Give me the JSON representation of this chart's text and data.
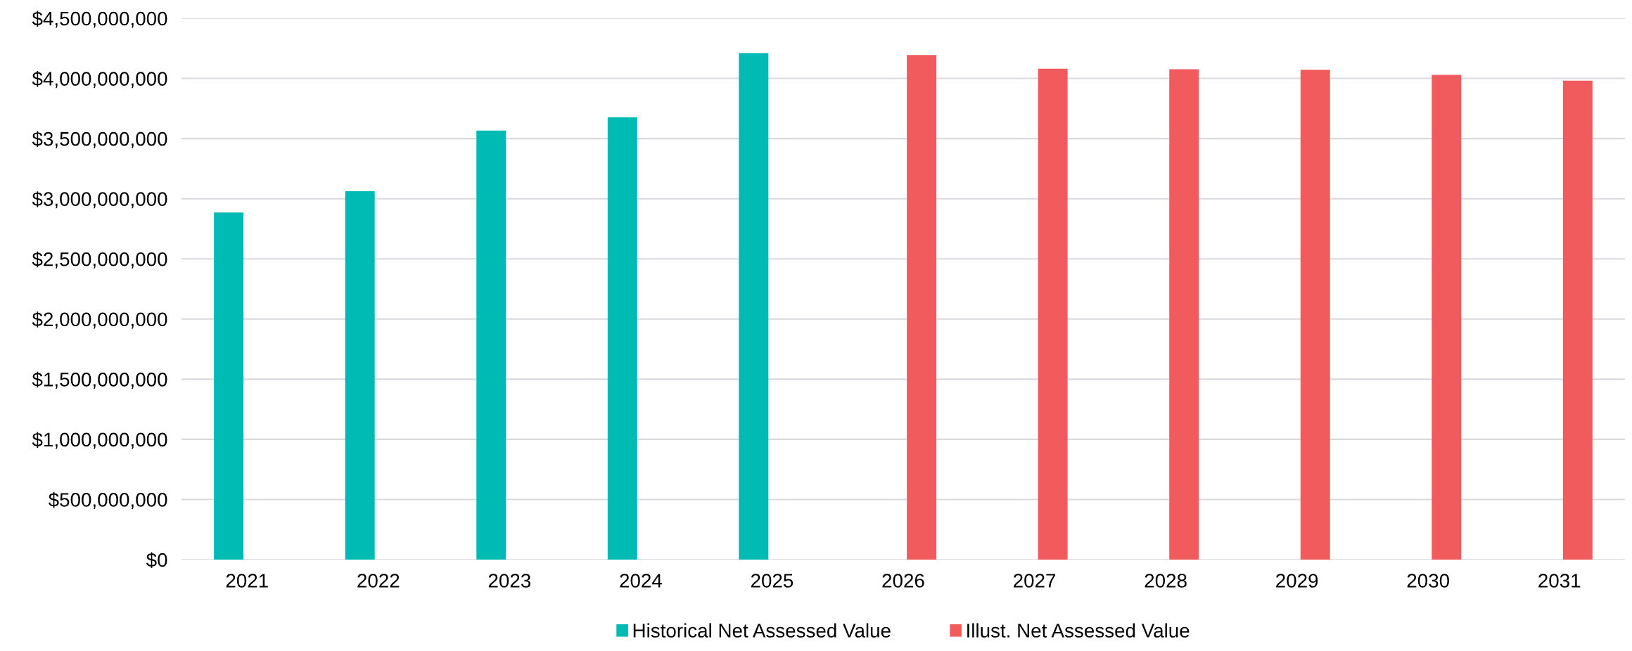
{
  "chart_data": {
    "type": "bar",
    "categories": [
      "2021",
      "2022",
      "2023",
      "2024",
      "2025",
      "2026",
      "2027",
      "2028",
      "2029",
      "2030",
      "2031"
    ],
    "series": [
      {
        "name": "Historical Net Assessed Value",
        "color": "#00bab4",
        "values": [
          2886000000,
          3063000000,
          3567000000,
          3677000000,
          4211000000,
          null,
          null,
          null,
          null,
          null,
          null
        ]
      },
      {
        "name": "Illust. Net Assessed Value",
        "color": "#f15b5d",
        "values": [
          null,
          null,
          null,
          null,
          null,
          4194000000,
          4080000000,
          4076000000,
          4072000000,
          4029000000,
          3981000000
        ]
      }
    ],
    "ylim": [
      0,
      4500000000
    ],
    "yticks": [
      {
        "value": 0,
        "label": "$0"
      },
      {
        "value": 500000000,
        "label": "$500,000,000"
      },
      {
        "value": 1000000000,
        "label": "$1,000,000,000"
      },
      {
        "value": 1500000000,
        "label": "$1,500,000,000"
      },
      {
        "value": 2000000000,
        "label": "$2,000,000,000"
      },
      {
        "value": 2500000000,
        "label": "$2,500,000,000"
      },
      {
        "value": 3000000000,
        "label": "$3,000,000,000"
      },
      {
        "value": 3500000000,
        "label": "$3,500,000,000"
      },
      {
        "value": 4000000000,
        "label": "$4,000,000,000"
      },
      {
        "value": 4500000000,
        "label": "$4,500,000,000"
      }
    ],
    "grid": "y",
    "legend": "bottom"
  }
}
